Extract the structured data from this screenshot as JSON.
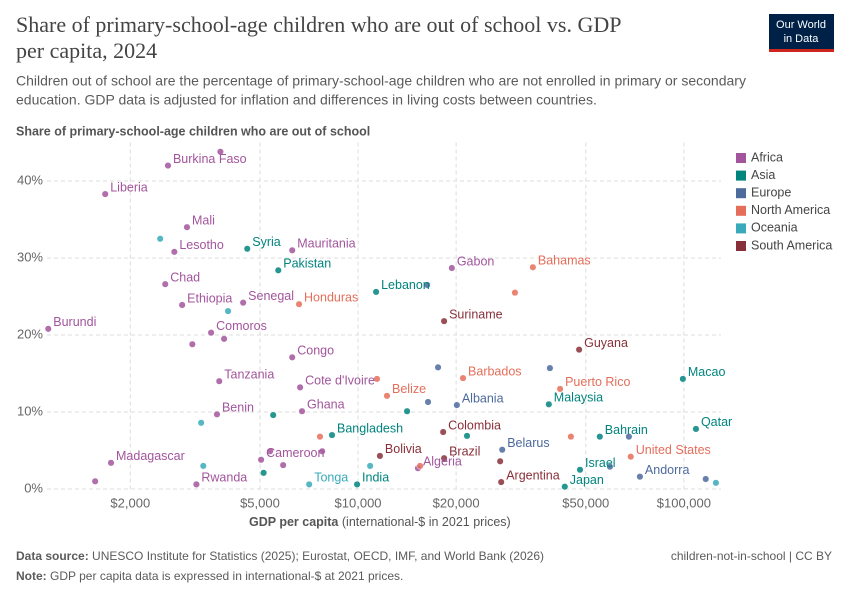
{
  "chart_data": {
    "type": "scatter",
    "title": "Share of primary-school-age children who are out of school vs. GDP",
    "title_line2": "per capita, 2024",
    "subtitle": "Children out of school are the percentage of primary-school-age children who are not enrolled in primary or secondary",
    "subtitle_line2": "education. GDP data is adjusted for inflation and differences in living costs between countries.",
    "y_label": "Share of primary-school-age children who are out of school",
    "x_label": "GDP per capita",
    "x_label_note": "(international-$ in 2021 prices)",
    "log_x": true,
    "grid": true,
    "legend": "right",
    "xlim": [
      1110,
      130000
    ],
    "xticks": [
      {
        "value": 2000,
        "label": "$2,000"
      },
      {
        "value": 5000,
        "label": "$5,000"
      },
      {
        "value": 10000,
        "label": "$10,000"
      },
      {
        "value": 20000,
        "label": "$20,000"
      },
      {
        "value": 50000,
        "label": "$50,000"
      },
      {
        "value": 100000,
        "label": "$100,000"
      }
    ],
    "ylim": [
      0,
      45
    ],
    "yticks": [
      {
        "value": 0,
        "label": "0%"
      },
      {
        "value": 10,
        "label": "10%"
      },
      {
        "value": 20,
        "label": "20%"
      },
      {
        "value": 30,
        "label": "30%"
      },
      {
        "value": 40,
        "label": "40%"
      }
    ],
    "series": [
      {
        "name": "Africa",
        "color": "#a2559c",
        "x": [
          2610,
          1675,
          2985,
          2730,
          6280,
          2560,
          2885,
          4440,
          1120,
          3540,
          6280,
          3750,
          6640,
          6730,
          3690,
          19400,
          1745,
          5040,
          3190,
          15270,
          1560,
          3780,
          3880,
          3100,
          5370,
          7760,
          5890
        ],
        "values": [
          42.0,
          38.3,
          34.0,
          30.8,
          31.0,
          26.6,
          23.9,
          24.2,
          20.8,
          20.3,
          17.1,
          14.0,
          13.2,
          10.1,
          9.7,
          28.7,
          3.4,
          3.8,
          0.6,
          2.7,
          1.0,
          43.8,
          19.5,
          18.8,
          4.9,
          4.9,
          3.1
        ],
        "labels": [
          "Burkina Faso",
          "Liberia",
          "Mali",
          "Lesotho",
          "Mauritania",
          "Chad",
          "Ethiopia",
          "Senegal",
          "Burundi",
          "Comoros",
          "Congo",
          "Tanzania",
          "Cote d'Ivoire",
          "Ghana",
          "Benin",
          "Gabon",
          "Madagascar",
          "Cameroon",
          "Rwanda",
          "Algeria",
          null,
          null,
          null,
          null,
          null,
          null,
          null
        ]
      },
      {
        "name": "Asia",
        "color": "#00847e",
        "x": [
          4570,
          5690,
          11360,
          8320,
          9930,
          38500,
          55200,
          108900,
          99300,
          48000,
          43100,
          5490,
          14140,
          5130,
          21600
        ],
        "values": [
          31.2,
          28.4,
          25.6,
          7.0,
          0.6,
          11.0,
          6.8,
          7.8,
          14.3,
          2.5,
          0.3,
          9.6,
          10.1,
          2.1,
          6.9
        ],
        "labels": [
          "Syria",
          "Pakistan",
          "Lebanon",
          "Bangladesh",
          "India",
          "Malaysia",
          "Bahrain",
          "Qatar",
          "Macao",
          "Israel",
          "Japan",
          null,
          null,
          null,
          null
        ]
      },
      {
        "name": "Europe",
        "color": "#4c6a9c",
        "x": [
          20100,
          27700,
          73300,
          16400,
          16300,
          17600,
          38800,
          67800,
          116700,
          59300
        ],
        "values": [
          10.9,
          5.1,
          1.6,
          11.3,
          26.5,
          15.8,
          15.7,
          6.8,
          1.3,
          2.9
        ],
        "labels": [
          "Albania",
          "Belarus",
          "Andorra",
          null,
          null,
          null,
          null,
          null,
          null,
          null
        ]
      },
      {
        "name": "North America",
        "color": "#e56e5a",
        "x": [
          34400,
          6590,
          21000,
          12270,
          41700,
          68700,
          30300,
          11430,
          7640,
          15500,
          45000
        ],
        "values": [
          28.8,
          24.0,
          14.4,
          12.1,
          13.0,
          4.2,
          25.5,
          14.3,
          6.8,
          3.0,
          6.8
        ],
        "labels": [
          "Bahamas",
          "Honduras",
          "Barbados",
          "Belize",
          "Puerto Rico",
          "United States",
          null,
          null,
          null,
          null,
          null
        ]
      },
      {
        "name": "Oceania",
        "color": "#38aaba",
        "x": [
          7080,
          2470,
          3990,
          3300,
          3350,
          10890,
          125400
        ],
        "values": [
          0.6,
          32.5,
          23.1,
          8.6,
          3.0,
          3.0,
          0.8
        ],
        "labels": [
          "Tonga",
          null,
          null,
          null,
          null,
          null,
          null
        ]
      },
      {
        "name": "South America",
        "color": "#883039",
        "x": [
          18370,
          47700,
          18250,
          11670,
          18370,
          27500,
          27300
        ],
        "values": [
          21.8,
          18.1,
          7.4,
          4.3,
          4.0,
          0.9,
          3.6
        ],
        "labels": [
          "Suriname",
          "Guyana",
          "Colombia",
          "Bolivia",
          "Brazil",
          "Argentina",
          null
        ]
      }
    ]
  },
  "logo": [
    "Our World",
    "in Data"
  ],
  "footer": {
    "source_key": "Data source:",
    "source": "UNESCO Institute for Statistics (2025); Eurostat, OECD, IMF, and World Bank (2026)",
    "note_key": "Note:",
    "note": "GDP per capita data is expressed in international-$ at 2021 prices.",
    "credit": "children-not-in-school | CC BY"
  }
}
